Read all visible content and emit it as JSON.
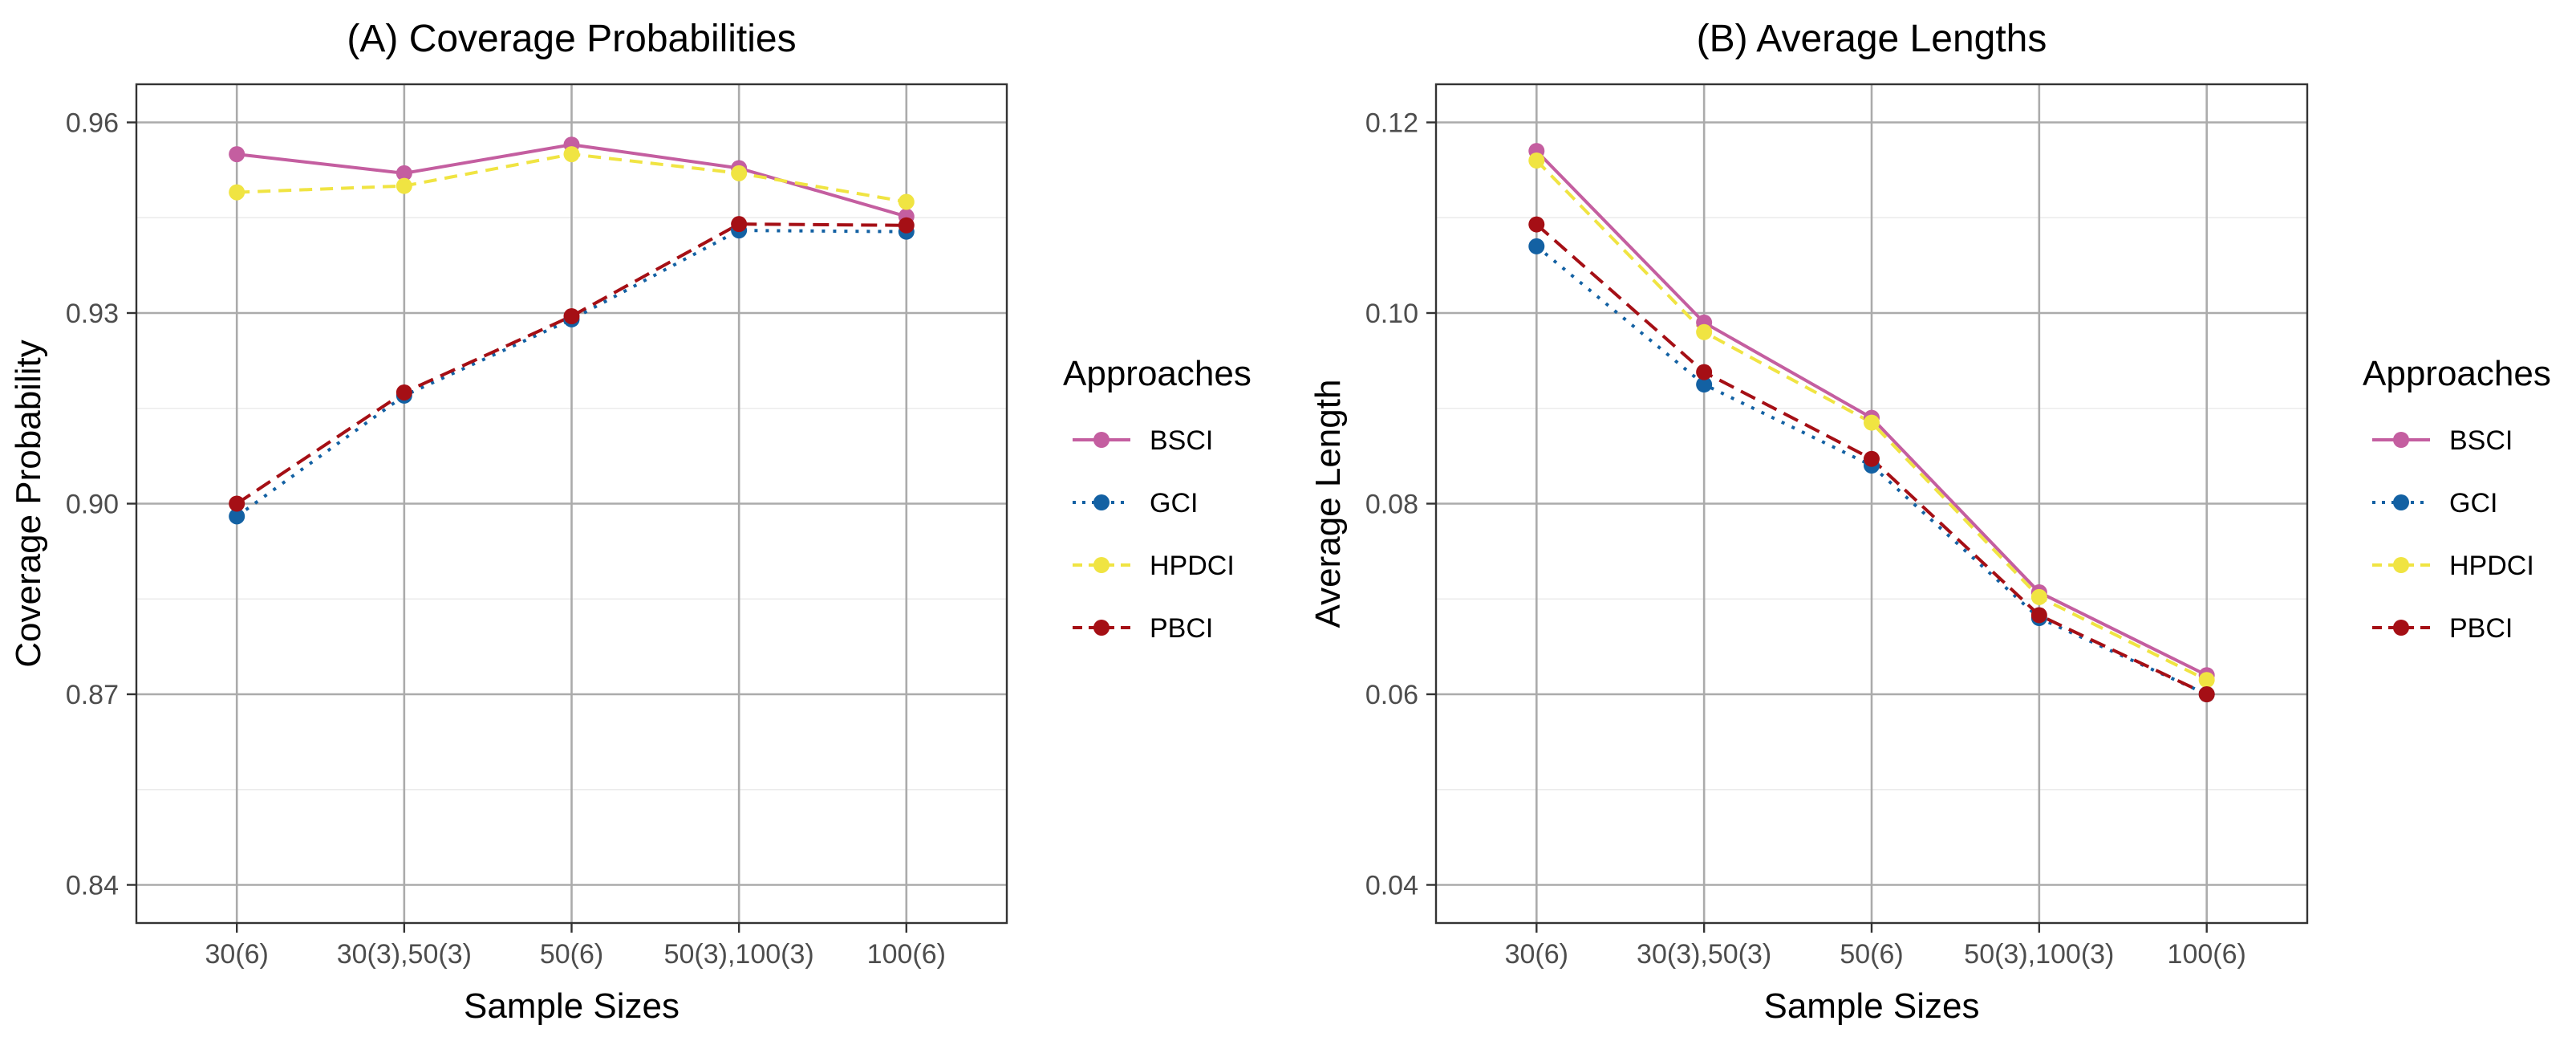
{
  "chart_data": [
    {
      "type": "line",
      "title": "(A) Coverage Probabilities",
      "xlabel": "Sample Sizes",
      "ylabel": "Coverage Probability",
      "categories": [
        "30(6)",
        "30(3),50(3)",
        "50(6)",
        "50(3),100(3)",
        "100(6)"
      ],
      "ylim": [
        0.834,
        0.966
      ],
      "yticks": [
        0.84,
        0.87,
        0.9,
        0.93,
        0.96
      ],
      "ytick_labels": [
        "0.84",
        "0.87",
        "0.90",
        "0.93",
        "0.96"
      ],
      "grid": true,
      "series": [
        {
          "name": "BSCI",
          "color": "#c45ea0",
          "dash": "solid",
          "values": [
            0.955,
            0.952,
            0.9565,
            0.9528,
            0.9452
          ]
        },
        {
          "name": "GCI",
          "color": "#1361a3",
          "dash": "dotted",
          "values": [
            0.898,
            0.917,
            0.929,
            0.943,
            0.9428
          ]
        },
        {
          "name": "HPDCI",
          "color": "#f0e442",
          "dash": "dashed",
          "values": [
            0.949,
            0.95,
            0.955,
            0.952,
            0.9475
          ]
        },
        {
          "name": "PBCI",
          "color": "#a50f15",
          "dash": "longdash",
          "values": [
            0.9,
            0.9175,
            0.9295,
            0.944,
            0.9438
          ]
        }
      ]
    },
    {
      "type": "line",
      "title": "(B) Average Lengths",
      "xlabel": "Sample Sizes",
      "ylabel": "Average Length",
      "categories": [
        "30(6)",
        "30(3),50(3)",
        "50(6)",
        "50(3),100(3)",
        "100(6)"
      ],
      "ylim": [
        0.036,
        0.124
      ],
      "yticks": [
        0.04,
        0.06,
        0.08,
        0.1,
        0.12
      ],
      "ytick_labels": [
        "0.04",
        "0.06",
        "0.08",
        "0.10",
        "0.12"
      ],
      "grid": true,
      "series": [
        {
          "name": "BSCI",
          "color": "#c45ea0",
          "dash": "solid",
          "values": [
            0.117,
            0.099,
            0.089,
            0.0707,
            0.062
          ]
        },
        {
          "name": "GCI",
          "color": "#1361a3",
          "dash": "dotted",
          "values": [
            0.107,
            0.0925,
            0.084,
            0.068,
            0.06
          ]
        },
        {
          "name": "HPDCI",
          "color": "#f0e442",
          "dash": "dashed",
          "values": [
            0.116,
            0.098,
            0.0885,
            0.0702,
            0.0615
          ]
        },
        {
          "name": "PBCI",
          "color": "#a50f15",
          "dash": "longdash",
          "values": [
            0.1093,
            0.0938,
            0.0847,
            0.0683,
            0.06
          ]
        }
      ]
    }
  ],
  "legend": {
    "title": "Approaches",
    "placement": "right",
    "items": [
      "BSCI",
      "GCI",
      "HPDCI",
      "PBCI"
    ]
  }
}
